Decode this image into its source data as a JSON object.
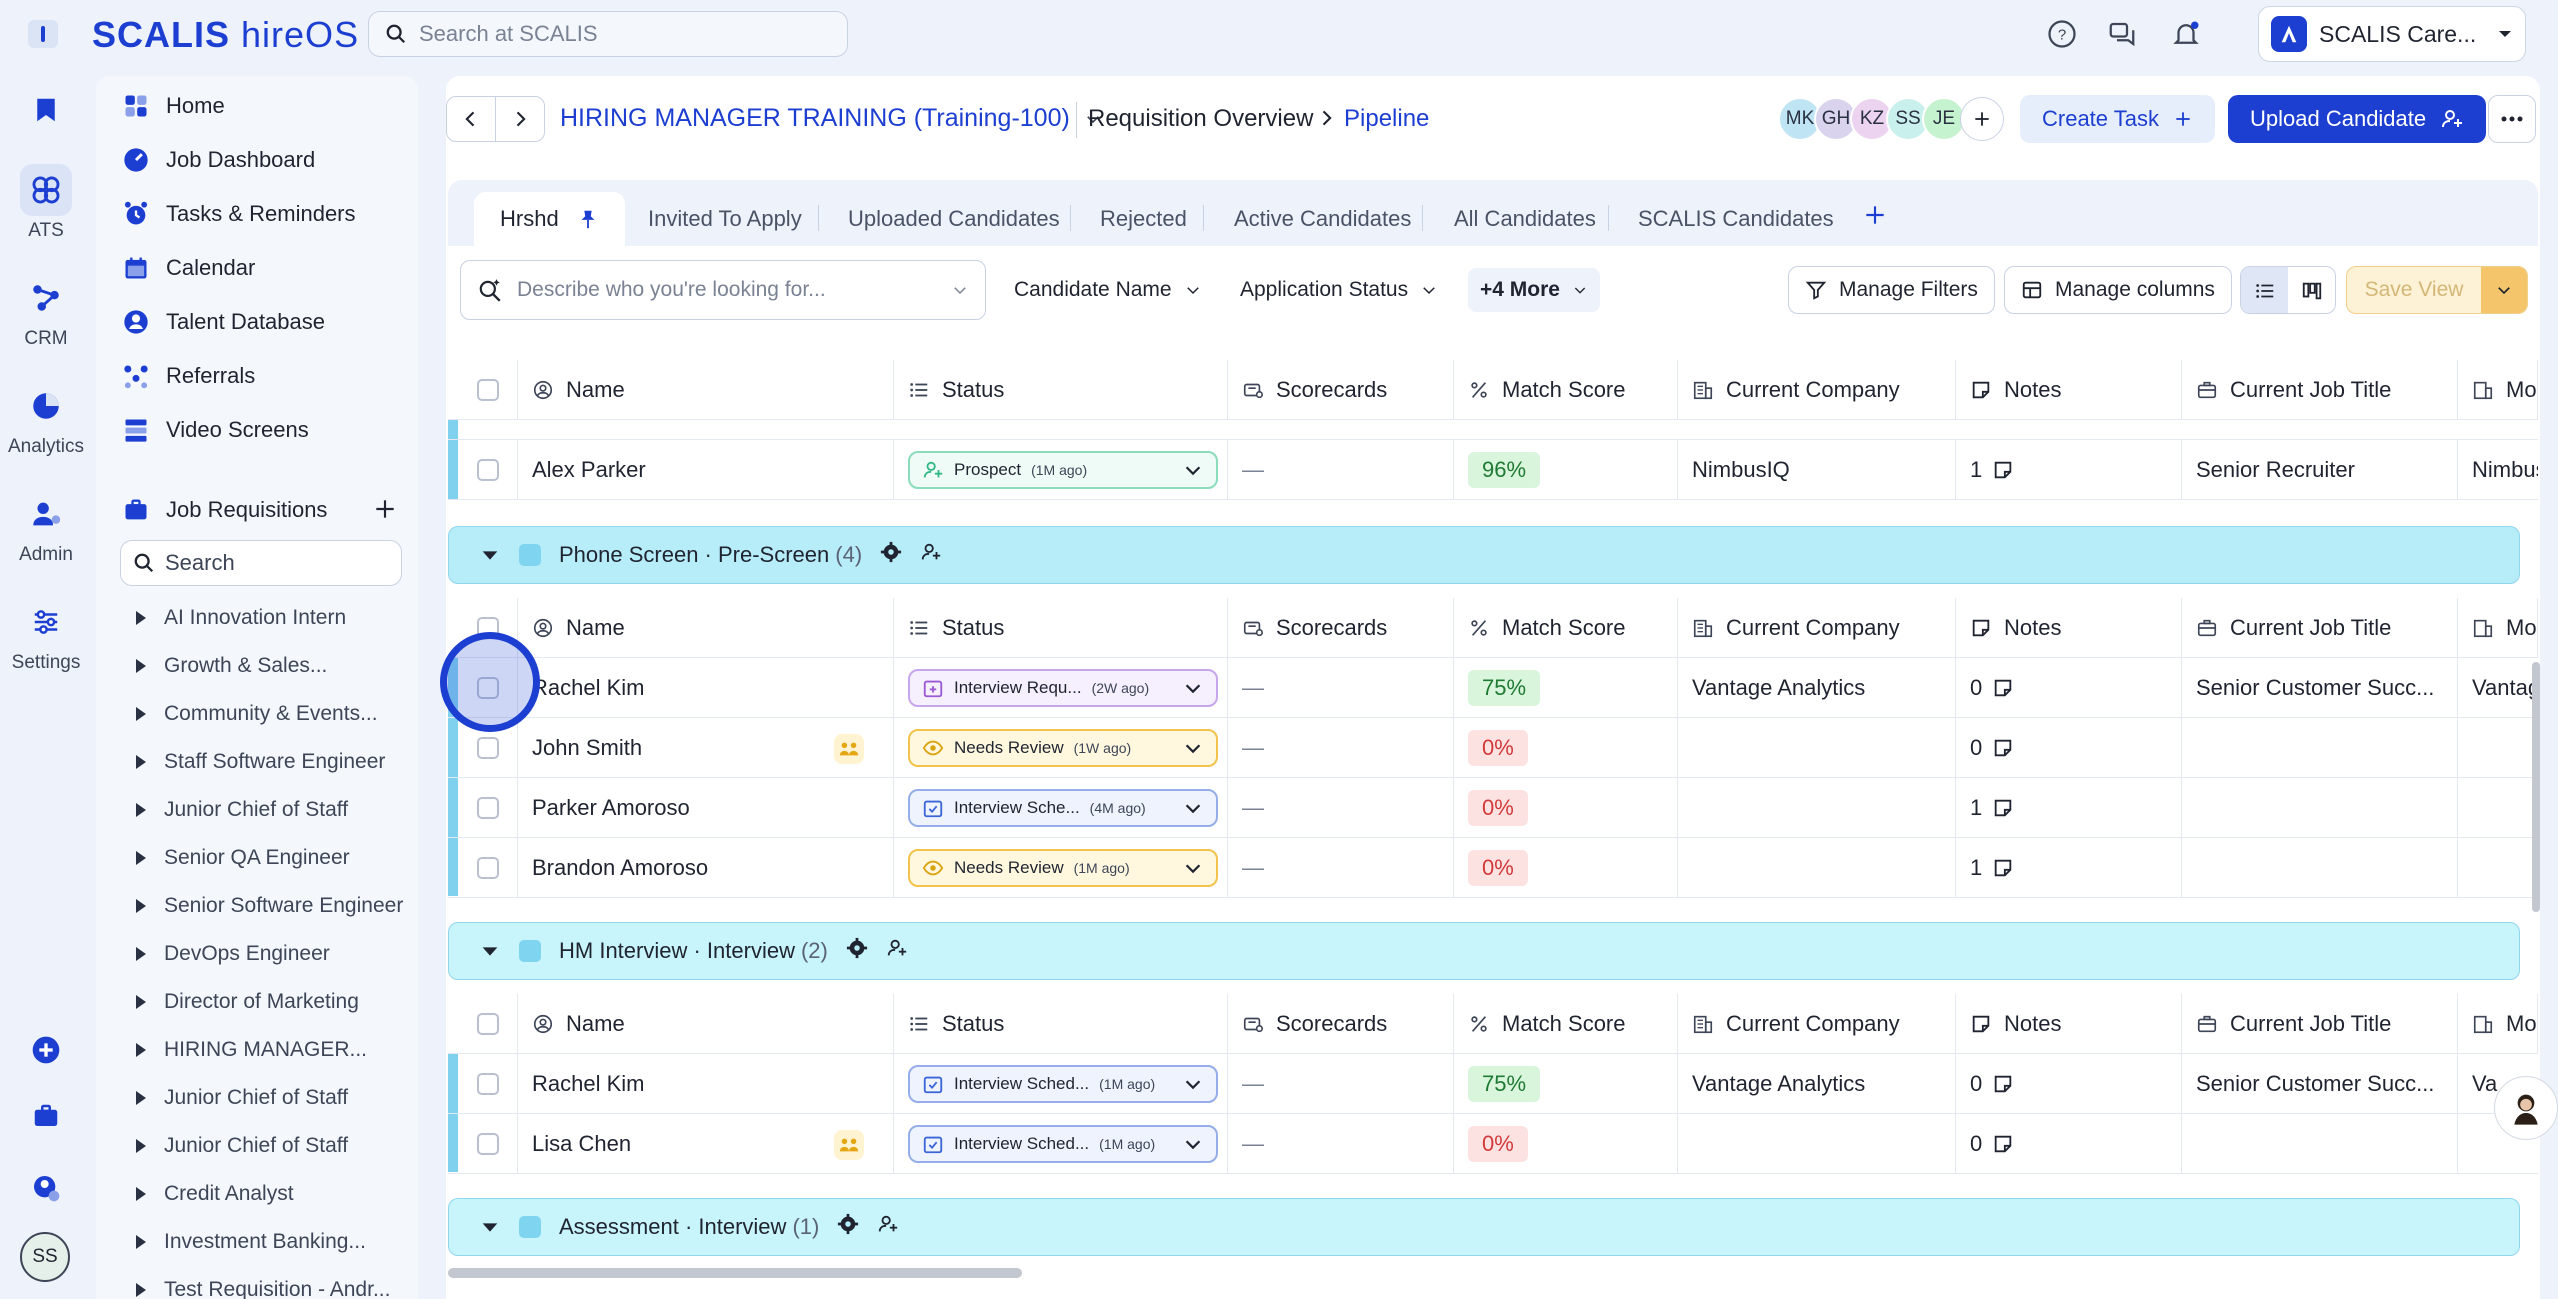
{
  "app": {
    "brand": "SCALIS",
    "product": "hireOS"
  },
  "top": {
    "search_placeholder": "Search at SCALIS",
    "org_name": "SCALIS Care..."
  },
  "rail": [
    {
      "label": ""
    },
    {
      "label": "ATS"
    },
    {
      "label": "CRM"
    },
    {
      "label": "Analytics"
    },
    {
      "label": "Admin"
    },
    {
      "label": "Settings"
    }
  ],
  "rail_bottom": {
    "avatar": "SS"
  },
  "nav": {
    "items": [
      "Home",
      "Job Dashboard",
      "Tasks & Reminders",
      "Calendar",
      "Talent Database",
      "Referrals",
      "Video Screens"
    ],
    "requisitions_label": "Job Requisitions",
    "search_placeholder": "Search",
    "requisitions": [
      "AI Innovation Intern",
      "Growth & Sales...",
      "Community & Events...",
      "Staff Software Engineer",
      "Junior Chief of Staff",
      "Senior QA Engineer",
      "Senior Software Engineer",
      "DevOps Engineer",
      "Director of Marketing",
      "HIRING MANAGER...",
      "Junior Chief of Staff",
      "Junior Chief of Staff",
      "Credit Analyst",
      "Investment Banking...",
      "Test Requisition - Andr..."
    ]
  },
  "header": {
    "job_title": "HIRING MANAGER TRAINING (Training-100)",
    "crumb1": "Requisition Overview",
    "crumb2": "Pipeline",
    "avatars": [
      "MK",
      "GH",
      "KZ",
      "SS",
      "JE"
    ],
    "create_task": "Create Task",
    "upload_candidate": "Upload Candidate"
  },
  "tabs": [
    "Hrshd",
    "Invited To Apply",
    "Uploaded Candidates",
    "Rejected",
    "Active Candidates",
    "All Candidates",
    "SCALIS Candidates"
  ],
  "filters": {
    "search_placeholder": "Describe who you're looking for...",
    "candidate_name": "Candidate Name",
    "application_status": "Application Status",
    "more": "+4 More",
    "manage_filters": "Manage Filters",
    "manage_columns": "Manage columns",
    "save_view": "Save View"
  },
  "columns": [
    "Name",
    "Status",
    "Scorecards",
    "Match Score",
    "Current Company",
    "Notes",
    "Current Job Title",
    "Mo"
  ],
  "top_row": {
    "name": "Alex Parker",
    "status": "Prospect",
    "ago": "(1M ago)",
    "scorecards": "—",
    "score": "96%",
    "company": "NimbusIQ",
    "notes": "1",
    "title": "Senior Recruiter",
    "more": "Nimbus"
  },
  "groups": [
    {
      "title": "Phone Screen",
      "stage": "Pre-Screen",
      "count": "(4)",
      "rows": [
        {
          "name": "Rachel Kim",
          "status": "Interview Requ...",
          "ago": "(2W ago)",
          "scorecards": "—",
          "score": "75%",
          "company": "Vantage Analytics",
          "notes": "0",
          "title": "Senior Customer Succ...",
          "more": "Vantag"
        },
        {
          "name": "John Smith",
          "status": "Needs Review",
          "ago": "(1W ago)",
          "scorecards": "—",
          "score": "0%",
          "company": "",
          "notes": "0",
          "title": "",
          "more": ""
        },
        {
          "name": "Parker Amoroso",
          "status": "Interview Sche...",
          "ago": "(4M ago)",
          "scorecards": "—",
          "score": "0%",
          "company": "",
          "notes": "1",
          "title": "",
          "more": ""
        },
        {
          "name": "Brandon Amoroso",
          "status": "Needs Review",
          "ago": "(1M ago)",
          "scorecards": "—",
          "score": "0%",
          "company": "",
          "notes": "1",
          "title": "",
          "more": ""
        }
      ]
    },
    {
      "title": "HM Interview",
      "stage": "Interview",
      "count": "(2)",
      "rows": [
        {
          "name": "Rachel Kim",
          "status": "Interview Sched...",
          "ago": "(1M ago)",
          "scorecards": "—",
          "score": "75%",
          "company": "Vantage Analytics",
          "notes": "0",
          "title": "Senior Customer Succ...",
          "more": "Va"
        },
        {
          "name": "Lisa Chen",
          "status": "Interview Sched...",
          "ago": "(1M ago)",
          "scorecards": "—",
          "score": "0%",
          "company": "",
          "notes": "0",
          "title": "",
          "more": ""
        }
      ]
    },
    {
      "title": "Assessment",
      "stage": "Interview",
      "count": "(1)",
      "rows": []
    }
  ],
  "colors": {
    "brand": "#1d3fd1",
    "group": "#b7ecf9",
    "score_hi": "#1f7a33",
    "score_zero": "#d13a3a"
  }
}
